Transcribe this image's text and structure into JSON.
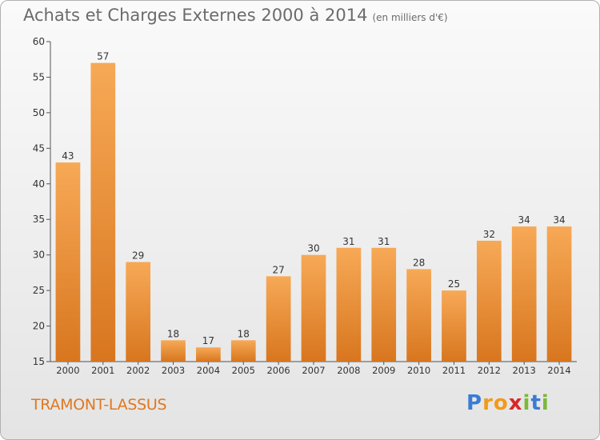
{
  "title": "Achats et Charges Externes 2000 à 2014",
  "unit_note": "(en milliers d'€)",
  "commune": "TRAMONT-LASSUS",
  "logo": {
    "letters": [
      "P",
      "r",
      "o",
      "x",
      "i",
      "t",
      "i"
    ],
    "colors": [
      "#3a7bd5",
      "#f29a1a",
      "#f29a1a",
      "#d9262a",
      "#7bb83a",
      "#3a7bd5",
      "#7bb83a"
    ]
  },
  "chart_data": {
    "type": "bar",
    "title": "Achats et Charges Externes 2000 à 2014",
    "subtitle": "(en milliers d'€)",
    "categories": [
      "2000",
      "2001",
      "2002",
      "2003",
      "2004",
      "2005",
      "2006",
      "2007",
      "2008",
      "2009",
      "2010",
      "2011",
      "2012",
      "2013",
      "2014"
    ],
    "values": [
      43,
      57,
      29,
      18,
      17,
      18,
      27,
      30,
      31,
      31,
      28,
      25,
      32,
      34,
      34
    ],
    "ylim": [
      15,
      60
    ],
    "yticks": [
      15,
      20,
      25,
      30,
      35,
      40,
      45,
      50,
      55,
      60
    ],
    "grid": false,
    "bar_color": "#f0933a"
  }
}
